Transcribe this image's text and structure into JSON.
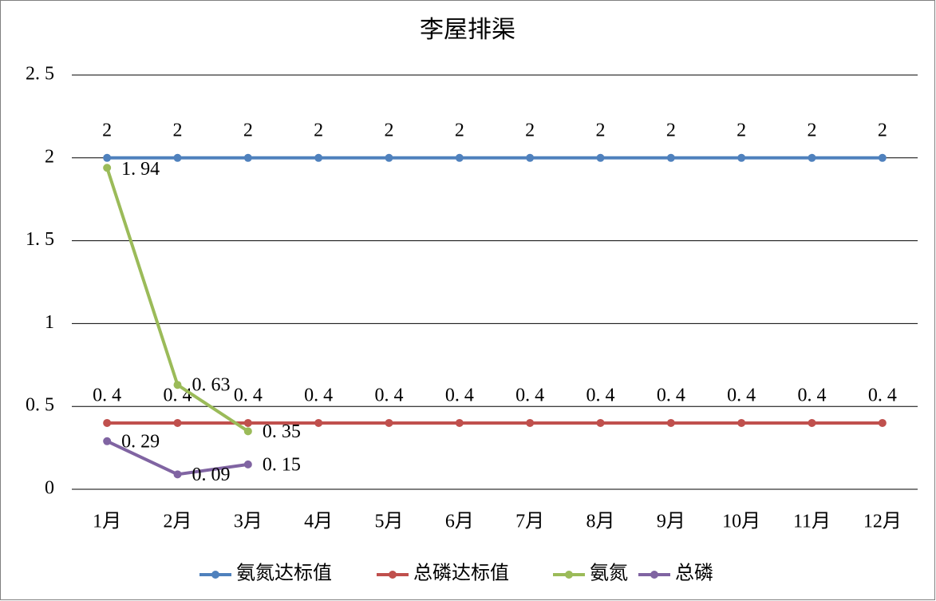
{
  "chart_data": {
    "type": "line",
    "title": "李屋排渠",
    "categories": [
      "1月",
      "2月",
      "3月",
      "4月",
      "5月",
      "6月",
      "7月",
      "8月",
      "9月",
      "10月",
      "11月",
      "12月"
    ],
    "series": [
      {
        "name": "氨氮达标值",
        "color": "#4f81bd",
        "values": [
          2,
          2,
          2,
          2,
          2,
          2,
          2,
          2,
          2,
          2,
          2,
          2
        ]
      },
      {
        "name": "总磷达标值",
        "color": "#c0504d",
        "values": [
          0.4,
          0.4,
          0.4,
          0.4,
          0.4,
          0.4,
          0.4,
          0.4,
          0.4,
          0.4,
          0.4,
          0.4
        ],
        "value_labels": [
          "0. 4",
          "0. 4",
          "0. 4",
          "0. 4",
          "0. 4",
          "0. 4",
          "0. 4",
          "0. 4",
          "0. 4",
          "0. 4",
          "0. 4",
          "0. 4"
        ]
      },
      {
        "name": "氨氮",
        "color": "#9bbb59",
        "values": [
          1.94,
          0.63,
          0.35,
          null,
          null,
          null,
          null,
          null,
          null,
          null,
          null,
          null
        ],
        "value_labels": [
          "1. 94",
          "0. 63",
          "0. 35",
          null,
          null,
          null,
          null,
          null,
          null,
          null,
          null,
          null
        ]
      },
      {
        "name": "总磷",
        "color": "#8064a2",
        "values": [
          0.29,
          0.09,
          0.15,
          null,
          null,
          null,
          null,
          null,
          null,
          null,
          null,
          null
        ],
        "value_labels": [
          "0. 29",
          "0. 09",
          "0. 15",
          null,
          null,
          null,
          null,
          null,
          null,
          null,
          null,
          null
        ]
      }
    ],
    "ylim": [
      0,
      2.5
    ],
    "yticks": [
      0,
      {
        "value": 0.5,
        "label": "0. 5"
      },
      1,
      {
        "value": 1.5,
        "label": "1. 5"
      },
      2,
      {
        "value": 2.5,
        "label": "2. 5"
      }
    ],
    "grid": true,
    "legend": "bottom"
  }
}
